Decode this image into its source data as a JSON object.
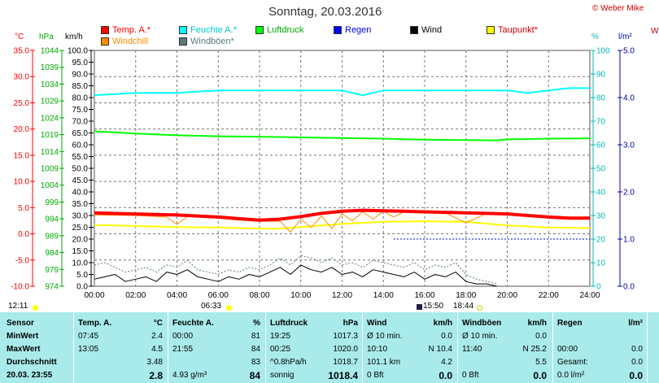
{
  "title": "Sonntag, 20.03.2016",
  "copyright": "© Weber Mike",
  "right_edge_label": "W",
  "legend": [
    {
      "label": "Temp. A.*",
      "color": "#ff0000"
    },
    {
      "label": "Feuchte A.*",
      "color": "#00ffff"
    },
    {
      "label": "Luftdruck",
      "color": "#00ff00"
    },
    {
      "label": "Regen",
      "color": "#0000ff"
    },
    {
      "label": "Wind",
      "color": "#000000"
    },
    {
      "label": "Taupunkt*",
      "color": "#ffff00"
    },
    {
      "label": "Windchill",
      "color": "#ff8c00"
    },
    {
      "label": "Windböen*",
      "color": "#5a7a7a"
    }
  ],
  "axis_heads": {
    "temp": "°C",
    "pressure": "hPa",
    "wind": "km/h",
    "humidity": "%",
    "rain": "l/m²"
  },
  "time_markers": {
    "sunrise_left": "12:11",
    "sunrise_time": "06:33",
    "sunset_time": "18:44",
    "moon_time": "15:50"
  },
  "chart_data": {
    "type": "line",
    "x_ticks": [
      "00:00",
      "02:00",
      "04:00",
      "06:00",
      "08:00",
      "10:00",
      "12:00",
      "14:00",
      "16:00",
      "18:00",
      "20:00",
      "22:00",
      "24:00"
    ],
    "xlim_hours": [
      0,
      24
    ],
    "y_axes": {
      "temp": {
        "ticks": [
          "35.0",
          "30.0",
          "25.0",
          "20.0",
          "15.0",
          "10.0",
          "5.0",
          "0.0",
          "-5.0",
          "-10.0"
        ],
        "ylim": [
          -10,
          35
        ]
      },
      "pressure": {
        "ticks": [
          "1044",
          "1039",
          "1034",
          "1029",
          "1024",
          "1019",
          "1014",
          "1009",
          "1004",
          "999",
          "994",
          "989",
          "984",
          "979",
          "974"
        ],
        "ylim": [
          974,
          1044
        ]
      },
      "wind": {
        "ticks": [
          "100.0",
          "95.0",
          "90.0",
          "85.0",
          "80.0",
          "75.0",
          "70.0",
          "65.0",
          "60.0",
          "55.0",
          "50.0",
          "45.0",
          "40.0",
          "35.0",
          "30.0",
          "25.0",
          "20.0",
          "15.0",
          "10.0",
          "5.0",
          "0.0"
        ],
        "ylim": [
          0,
          100
        ]
      },
      "humidity": {
        "ticks": [
          "100",
          "90",
          "80",
          "70",
          "60",
          "50",
          "40",
          "30",
          "20",
          "10",
          "0"
        ],
        "ylim": [
          0,
          100
        ]
      },
      "rain": {
        "ticks": [
          "5.0",
          "4.0",
          "3.0",
          "2.0",
          "1.0",
          "0.0"
        ],
        "ylim": [
          0,
          5
        ]
      }
    },
    "series": [
      {
        "name": "Temp. A.*",
        "axis": "temp",
        "color": "#ff0000",
        "width": 4,
        "x": [
          0,
          2,
          4,
          6,
          7,
          8,
          9,
          10,
          11,
          12,
          13,
          14,
          15,
          16,
          17,
          18,
          19,
          20,
          21,
          22,
          23,
          24
        ],
        "y": [
          4.0,
          3.8,
          3.6,
          3.2,
          2.9,
          2.6,
          2.8,
          3.3,
          3.9,
          4.3,
          4.5,
          4.4,
          4.3,
          4.2,
          4.1,
          4.0,
          3.9,
          3.8,
          3.5,
          3.2,
          3.0,
          3.0
        ]
      },
      {
        "name": "Windchill",
        "axis": "temp",
        "color": "#ff8c00",
        "width": 1,
        "x": [
          0,
          2,
          3.5,
          4,
          4.5,
          6,
          7,
          8,
          9,
          9.5,
          10,
          10.5,
          11,
          11.5,
          12,
          12.5,
          13,
          13.5,
          14,
          14.5,
          15,
          16,
          17,
          18,
          19,
          20,
          24
        ],
        "y": [
          3.6,
          3.5,
          3.2,
          1.8,
          3.3,
          3.0,
          2.6,
          2.4,
          2.4,
          0.3,
          2.8,
          1.2,
          3.4,
          1.0,
          3.8,
          2.5,
          4.2,
          2.8,
          4.3,
          3.2,
          4.2,
          4.1,
          4.0,
          2.1,
          3.9,
          3.8,
          3.0
        ]
      },
      {
        "name": "Taupunkt*",
        "axis": "temp",
        "color": "#ffff00",
        "width": 2,
        "x": [
          0,
          4,
          6,
          8,
          9,
          10,
          12,
          14,
          16,
          18,
          20,
          22,
          24
        ],
        "y": [
          1.7,
          1.3,
          1.2,
          1.0,
          1.0,
          1.3,
          1.9,
          2.3,
          2.4,
          2.3,
          1.6,
          1.2,
          1.1
        ]
      },
      {
        "name": "Feuchte A.*",
        "axis": "humidity",
        "color": "#00ffff",
        "width": 2,
        "x": [
          0,
          2,
          4,
          6,
          8,
          10,
          12,
          13,
          14,
          16,
          18,
          20,
          21,
          22,
          23,
          24
        ],
        "y": [
          81,
          82,
          82,
          83,
          83,
          83,
          83,
          81,
          83,
          83,
          83,
          83,
          82,
          83,
          84,
          84
        ]
      },
      {
        "name": "Luftdruck",
        "axis": "pressure",
        "color": "#00ff00",
        "width": 2,
        "x": [
          0,
          2,
          4,
          6,
          8,
          10,
          12,
          14,
          16,
          18,
          19.5,
          20,
          22,
          24
        ],
        "y": [
          1020.0,
          1019.3,
          1018.8,
          1018.5,
          1018.4,
          1018.2,
          1018.0,
          1017.8,
          1017.5,
          1017.4,
          1017.3,
          1017.6,
          1017.8,
          1017.9
        ]
      },
      {
        "name": "Wind",
        "axis": "wind",
        "color": "#000000",
        "width": 1,
        "x": [
          0,
          0.5,
          1,
          1.5,
          2,
          2.5,
          3,
          3.5,
          4,
          4.5,
          5,
          5.5,
          6,
          6.5,
          7,
          7.5,
          8,
          8.5,
          9,
          9.5,
          10,
          10.5,
          11,
          11.5,
          12,
          12.5,
          13,
          13.5,
          14,
          14.5,
          15,
          15.5,
          16,
          16.5,
          17,
          17.5,
          18,
          18.5,
          19,
          19.5
        ],
        "y": [
          3,
          4,
          5,
          2,
          3,
          4,
          2,
          6,
          5,
          7,
          4,
          3,
          2,
          4,
          3,
          5,
          4,
          6,
          8,
          5,
          9,
          7,
          6,
          8,
          5,
          6,
          4,
          7,
          6,
          5,
          4,
          6,
          3,
          5,
          4,
          6,
          2,
          1,
          1,
          0
        ]
      },
      {
        "name": "Windböen*",
        "axis": "wind",
        "color": "#5a7a7a",
        "width": 1,
        "dash": true,
        "x": [
          0,
          0.5,
          1,
          1.5,
          2,
          2.5,
          3,
          3.5,
          4,
          4.5,
          5,
          5.5,
          6,
          6.5,
          7,
          7.5,
          8,
          8.5,
          9,
          9.5,
          10,
          10.5,
          11,
          11.5,
          12,
          12.5,
          13,
          13.5,
          14,
          14.5,
          15,
          15.5,
          16,
          16.5,
          17,
          17.5,
          18,
          18.5,
          19,
          19.5
        ],
        "y": [
          9,
          10,
          8,
          6,
          7,
          8,
          6,
          9,
          8,
          11,
          7,
          6,
          5,
          7,
          6,
          8,
          7,
          9,
          12,
          9,
          13,
          12,
          10,
          12,
          9,
          10,
          8,
          11,
          10,
          9,
          8,
          10,
          7,
          9,
          8,
          10,
          5,
          3,
          2,
          1
        ]
      }
    ],
    "rain_line_value": 1.0
  },
  "table": {
    "headers": {
      "sensor": "Sensor",
      "temp": "Temp. A.",
      "temp_unit": "°C",
      "hum": "Feuchte A.",
      "hum_unit": "%",
      "press": "Luftdruck",
      "press_unit": "hPa",
      "wind": "Wind",
      "wind_unit": "km/h",
      "gust": "Windböen",
      "gust_unit": "km/h",
      "rain": "Regen",
      "rain_unit": "l/m²"
    },
    "row_labels": [
      "MinWert",
      "MaxWert",
      "Durchschnitt",
      "20.03. 23:55"
    ],
    "temp": [
      [
        "07:45",
        "2.4"
      ],
      [
        "13:05",
        "4.5"
      ],
      [
        "",
        "3.48"
      ],
      [
        "",
        "2.8"
      ]
    ],
    "hum": [
      [
        "00:00",
        "81"
      ],
      [
        "21:55",
        "84"
      ],
      [
        "",
        "83"
      ],
      [
        "4.93 g/m³",
        "84"
      ]
    ],
    "press": [
      [
        "19:25",
        "1017.3"
      ],
      [
        "00:25",
        "1020.0"
      ],
      [
        "^0.8hPa/h",
        "1018.7"
      ],
      [
        "sonnig",
        "1018.4"
      ]
    ],
    "wind": [
      [
        "Ø 10 min.",
        "0.0"
      ],
      [
        "10:10",
        "N 10.4"
      ],
      [
        "101.1 km",
        "4.2"
      ],
      [
        "0 Bft",
        "0.0"
      ]
    ],
    "gust": [
      [
        "Ø 10 min.",
        "0.0"
      ],
      [
        "11:40",
        "N 25.2"
      ],
      [
        "",
        "5.5"
      ],
      [
        "0 Bft",
        "0.0"
      ]
    ],
    "rain": [
      [
        "",
        ""
      ],
      [
        "00:00",
        "0.0"
      ],
      [
        "Gesamt:",
        "0.0"
      ],
      [
        "0.0 l/m²",
        "0.0"
      ]
    ]
  }
}
